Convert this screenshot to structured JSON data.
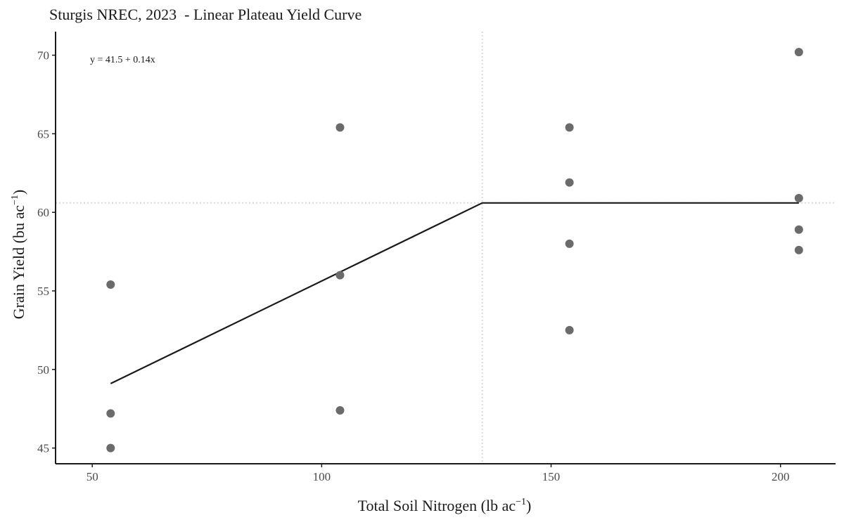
{
  "chart_data": {
    "type": "scatter",
    "title": "Sturgis NREC, 2023  - Linear Plateau Yield Curve",
    "xlabel": "Total Soil Nitrogen (lb ac",
    "xlabel_sup": "−1",
    "xlabel_suffix": ")",
    "ylabel": "Grain Yield (bu ac",
    "ylabel_sup": "−1",
    "ylabel_suffix": ")",
    "xlim": [
      42,
      212
    ],
    "ylim": [
      44,
      71.5
    ],
    "xticks": [
      50,
      100,
      150,
      200
    ],
    "yticks": [
      45,
      50,
      55,
      60,
      65,
      70
    ],
    "grid": false,
    "points": [
      {
        "x": 54,
        "y": 55.4
      },
      {
        "x": 54,
        "y": 47.2
      },
      {
        "x": 54,
        "y": 45.0
      },
      {
        "x": 104,
        "y": 65.4
      },
      {
        "x": 104,
        "y": 56.0
      },
      {
        "x": 104,
        "y": 47.4
      },
      {
        "x": 154,
        "y": 65.4
      },
      {
        "x": 154,
        "y": 61.9
      },
      {
        "x": 154,
        "y": 58.0
      },
      {
        "x": 154,
        "y": 52.5
      },
      {
        "x": 204,
        "y": 70.2
      },
      {
        "x": 204,
        "y": 60.9
      },
      {
        "x": 204,
        "y": 58.9
      },
      {
        "x": 204,
        "y": 57.6
      }
    ],
    "fit_line": [
      {
        "x": 54,
        "y": 49.1
      },
      {
        "x": 135,
        "y": 60.6
      },
      {
        "x": 204,
        "y": 60.6
      }
    ],
    "ref_lines": {
      "x": 135,
      "y": 60.6
    },
    "annotation": "y = 41.5 + 0.14x",
    "point_color": "#6b6b6b",
    "line_color": "#1a1a1a",
    "ref_line_color": "#d9d9d9"
  }
}
